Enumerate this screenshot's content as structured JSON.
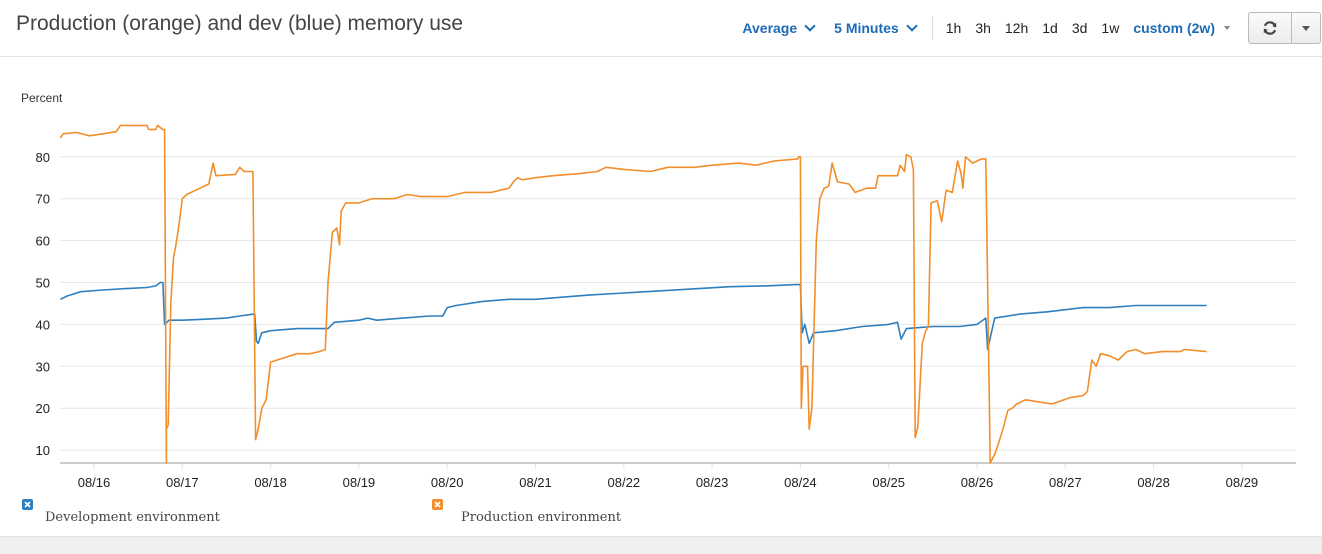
{
  "header": {
    "title": "Production (orange) and dev (blue) memory use",
    "statistic": "Average",
    "period": "5 Minutes",
    "ranges": [
      "1h",
      "3h",
      "12h",
      "1d",
      "3d",
      "1w"
    ],
    "custom_range": "custom (2w)",
    "refresh_icon": "refresh-icon",
    "more_icon": "caret-down-icon"
  },
  "colors": {
    "accent": "#1d6bb6",
    "dev": "#2e7fbf",
    "prod": "#f28e2b",
    "grid": "#e6e6e6",
    "axis": "#cccccc"
  },
  "legend": [
    {
      "label": "Development environment",
      "color": "#2e7fbf",
      "icon": "close-icon"
    },
    {
      "label": "Production environment",
      "color": "#f28e2b",
      "icon": "close-icon"
    }
  ],
  "chart_data": {
    "type": "line",
    "title": "Production (orange) and dev (blue) memory use",
    "xlabel": "",
    "ylabel": "Percent",
    "ylim": [
      7,
      88
    ],
    "yticks": [
      10,
      20,
      30,
      40,
      50,
      60,
      70,
      80
    ],
    "xticks": [
      "08/16",
      "08/17",
      "08/18",
      "08/19",
      "08/20",
      "08/21",
      "08/22",
      "08/23",
      "08/24",
      "08/25",
      "08/26",
      "08/27",
      "08/28",
      "08/29"
    ],
    "grid": true,
    "legend_position": "bottom",
    "x_unit": "day offset from 08/16 00:00",
    "series": [
      {
        "name": "Development environment",
        "color": "#2e7fbf",
        "points": [
          [
            -0.38,
            46.0
          ],
          [
            -0.3,
            46.8
          ],
          [
            -0.15,
            47.8
          ],
          [
            0.1,
            48.2
          ],
          [
            0.4,
            48.6
          ],
          [
            0.6,
            48.8
          ],
          [
            0.7,
            49.2
          ],
          [
            0.75,
            50.0
          ],
          [
            0.76,
            50.0
          ],
          [
            0.78,
            50.0
          ],
          [
            0.8,
            40.0
          ],
          [
            0.85,
            41.0
          ],
          [
            1.0,
            41.0
          ],
          [
            1.2,
            41.2
          ],
          [
            1.5,
            41.5
          ],
          [
            1.65,
            42.0
          ],
          [
            1.82,
            42.5
          ],
          [
            1.84,
            36.0
          ],
          [
            1.86,
            35.5
          ],
          [
            1.9,
            38.0
          ],
          [
            2.0,
            38.5
          ],
          [
            2.3,
            39.0
          ],
          [
            2.65,
            39.0
          ],
          [
            2.72,
            40.5
          ],
          [
            3.0,
            41.0
          ],
          [
            3.1,
            41.5
          ],
          [
            3.2,
            41.0
          ],
          [
            3.5,
            41.5
          ],
          [
            3.8,
            42.0
          ],
          [
            3.95,
            42.0
          ],
          [
            4.0,
            44.0
          ],
          [
            4.1,
            44.5
          ],
          [
            4.4,
            45.5
          ],
          [
            4.7,
            46.0
          ],
          [
            5.0,
            46.0
          ],
          [
            5.3,
            46.5
          ],
          [
            5.6,
            47.0
          ],
          [
            6.0,
            47.5
          ],
          [
            6.4,
            48.0
          ],
          [
            6.8,
            48.5
          ],
          [
            7.2,
            49.0
          ],
          [
            7.6,
            49.2
          ],
          [
            7.95,
            49.5
          ],
          [
            8.0,
            49.5
          ],
          [
            8.02,
            38.0
          ],
          [
            8.05,
            40.0
          ],
          [
            8.1,
            35.5
          ],
          [
            8.15,
            38.0
          ],
          [
            8.4,
            38.5
          ],
          [
            8.7,
            39.5
          ],
          [
            9.0,
            40.0
          ],
          [
            9.1,
            40.5
          ],
          [
            9.14,
            36.5
          ],
          [
            9.2,
            39.0
          ],
          [
            9.5,
            39.5
          ],
          [
            9.8,
            39.5
          ],
          [
            10.0,
            40.0
          ],
          [
            10.1,
            41.5
          ],
          [
            10.12,
            34.0
          ],
          [
            10.2,
            41.5
          ],
          [
            10.5,
            42.5
          ],
          [
            10.8,
            43.0
          ],
          [
            11.0,
            43.5
          ],
          [
            11.2,
            44.0
          ],
          [
            11.5,
            44.0
          ],
          [
            11.8,
            44.5
          ],
          [
            12.2,
            44.5
          ],
          [
            12.6,
            44.5
          ]
        ]
      },
      {
        "name": "Production environment",
        "color": "#f28e2b",
        "points": [
          [
            -0.38,
            84.5
          ],
          [
            -0.35,
            85.5
          ],
          [
            -0.2,
            85.8
          ],
          [
            -0.05,
            85.0
          ],
          [
            0.1,
            85.5
          ],
          [
            0.25,
            86.0
          ],
          [
            0.3,
            87.5
          ],
          [
            0.6,
            87.5
          ],
          [
            0.62,
            86.5
          ],
          [
            0.7,
            86.5
          ],
          [
            0.72,
            87.5
          ],
          [
            0.78,
            86.5
          ],
          [
            0.8,
            86.5
          ],
          [
            0.82,
            0
          ],
          [
            0.82,
            15.0
          ],
          [
            0.84,
            16.0
          ],
          [
            0.87,
            45.0
          ],
          [
            0.9,
            56.0
          ],
          [
            0.92,
            58.0
          ],
          [
            0.95,
            62.0
          ],
          [
            0.97,
            65.0
          ],
          [
            1.0,
            70.0
          ],
          [
            1.05,
            71.0
          ],
          [
            1.15,
            72.0
          ],
          [
            1.3,
            73.5
          ],
          [
            1.35,
            78.5
          ],
          [
            1.38,
            75.5
          ],
          [
            1.6,
            75.8
          ],
          [
            1.65,
            77.5
          ],
          [
            1.7,
            76.5
          ],
          [
            1.8,
            76.5
          ],
          [
            1.83,
            12.5
          ],
          [
            1.86,
            15.0
          ],
          [
            1.9,
            20.0
          ],
          [
            1.95,
            22.0
          ],
          [
            2.0,
            31.0
          ],
          [
            2.15,
            32.0
          ],
          [
            2.3,
            33.0
          ],
          [
            2.45,
            33.0
          ],
          [
            2.55,
            33.5
          ],
          [
            2.62,
            34.0
          ],
          [
            2.65,
            50.0
          ],
          [
            2.7,
            62.0
          ],
          [
            2.75,
            63.0
          ],
          [
            2.78,
            59.0
          ],
          [
            2.8,
            67.0
          ],
          [
            2.85,
            69.0
          ],
          [
            3.0,
            69.0
          ],
          [
            3.15,
            70.0
          ],
          [
            3.4,
            70.0
          ],
          [
            3.55,
            71.0
          ],
          [
            3.7,
            70.5
          ],
          [
            4.0,
            70.5
          ],
          [
            4.2,
            71.5
          ],
          [
            4.5,
            71.5
          ],
          [
            4.7,
            72.5
          ],
          [
            4.75,
            74.0
          ],
          [
            4.8,
            75.0
          ],
          [
            4.85,
            74.5
          ],
          [
            5.0,
            75.0
          ],
          [
            5.2,
            75.5
          ],
          [
            5.5,
            76.0
          ],
          [
            5.7,
            76.5
          ],
          [
            5.8,
            77.5
          ],
          [
            6.0,
            77.0
          ],
          [
            6.3,
            76.5
          ],
          [
            6.5,
            77.5
          ],
          [
            6.8,
            77.5
          ],
          [
            7.0,
            78.0
          ],
          [
            7.3,
            78.5
          ],
          [
            7.5,
            78.0
          ],
          [
            7.7,
            79.0
          ],
          [
            7.97,
            79.5
          ],
          [
            7.98,
            80.0
          ],
          [
            8.0,
            80.0
          ],
          [
            8.01,
            20.0
          ],
          [
            8.03,
            30.0
          ],
          [
            8.08,
            30.0
          ],
          [
            8.1,
            15.0
          ],
          [
            8.13,
            20.0
          ],
          [
            8.18,
            60.0
          ],
          [
            8.22,
            70.0
          ],
          [
            8.27,
            72.5
          ],
          [
            8.32,
            73.0
          ],
          [
            8.36,
            78.5
          ],
          [
            8.42,
            74.0
          ],
          [
            8.55,
            73.5
          ],
          [
            8.62,
            71.5
          ],
          [
            8.75,
            72.5
          ],
          [
            8.85,
            72.5
          ],
          [
            8.88,
            75.5
          ],
          [
            9.0,
            75.5
          ],
          [
            9.1,
            75.5
          ],
          [
            9.13,
            78.0
          ],
          [
            9.18,
            76.5
          ],
          [
            9.2,
            80.5
          ],
          [
            9.25,
            80.0
          ],
          [
            9.28,
            77.0
          ],
          [
            9.3,
            13.0
          ],
          [
            9.33,
            15.5
          ],
          [
            9.38,
            35.5
          ],
          [
            9.42,
            38.5
          ],
          [
            9.45,
            39.5
          ],
          [
            9.48,
            69.0
          ],
          [
            9.55,
            69.5
          ],
          [
            9.6,
            64.5
          ],
          [
            9.65,
            72.0
          ],
          [
            9.72,
            71.5
          ],
          [
            9.78,
            79.0
          ],
          [
            9.82,
            76.0
          ],
          [
            9.84,
            72.5
          ],
          [
            9.87,
            80.0
          ],
          [
            9.95,
            78.5
          ],
          [
            10.05,
            79.5
          ],
          [
            10.1,
            79.5
          ],
          [
            10.15,
            5.0
          ],
          [
            10.2,
            9.0
          ],
          [
            10.25,
            12.0
          ],
          [
            10.3,
            15.5
          ],
          [
            10.35,
            19.5
          ],
          [
            10.4,
            20.0
          ],
          [
            10.45,
            21.0
          ],
          [
            10.55,
            22.0
          ],
          [
            10.7,
            21.5
          ],
          [
            10.85,
            21.0
          ],
          [
            11.05,
            22.5
          ],
          [
            11.2,
            23.0
          ],
          [
            11.25,
            24.0
          ],
          [
            11.3,
            31.5
          ],
          [
            11.35,
            30.0
          ],
          [
            11.4,
            33.0
          ],
          [
            11.5,
            32.5
          ],
          [
            11.6,
            31.5
          ],
          [
            11.7,
            33.5
          ],
          [
            11.8,
            34.0
          ],
          [
            11.9,
            33.0
          ],
          [
            12.1,
            33.5
          ],
          [
            12.3,
            33.5
          ],
          [
            12.35,
            34.0
          ],
          [
            12.6,
            33.5
          ]
        ]
      }
    ]
  }
}
